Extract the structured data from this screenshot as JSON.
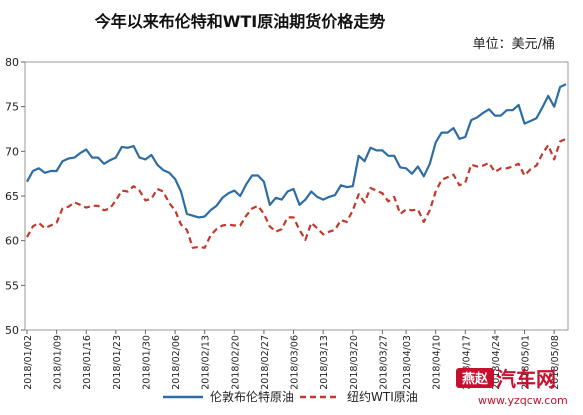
{
  "chart_data": {
    "type": "line",
    "title": "今年以来布伦特和WTI原油期货价格走势",
    "unit_label": "单位：美元/桶",
    "ylim": [
      50,
      80
    ],
    "yticks": [
      50,
      55,
      60,
      65,
      70,
      75,
      80
    ],
    "grid": false,
    "legend_position": "bottom",
    "x": [
      "2018/01/02",
      "2018/01/03",
      "2018/01/04",
      "2018/01/05",
      "2018/01/08",
      "2018/01/09",
      "2018/01/10",
      "2018/01/11",
      "2018/01/12",
      "2018/01/15",
      "2018/01/16",
      "2018/01/17",
      "2018/01/18",
      "2018/01/19",
      "2018/01/22",
      "2018/01/23",
      "2018/01/24",
      "2018/01/25",
      "2018/01/26",
      "2018/01/29",
      "2018/01/30",
      "2018/01/31",
      "2018/02/01",
      "2018/02/02",
      "2018/02/05",
      "2018/02/06",
      "2018/02/07",
      "2018/02/08",
      "2018/02/09",
      "2018/02/12",
      "2018/02/13",
      "2018/02/14",
      "2018/02/15",
      "2018/02/16",
      "2018/02/19",
      "2018/02/20",
      "2018/02/21",
      "2018/02/22",
      "2018/02/23",
      "2018/02/26",
      "2018/02/27",
      "2018/02/28",
      "2018/03/01",
      "2018/03/02",
      "2018/03/05",
      "2018/03/06",
      "2018/03/07",
      "2018/03/08",
      "2018/03/09",
      "2018/03/12",
      "2018/03/13",
      "2018/03/14",
      "2018/03/15",
      "2018/03/16",
      "2018/03/19",
      "2018/03/20",
      "2018/03/21",
      "2018/03/22",
      "2018/03/23",
      "2018/03/26",
      "2018/03/27",
      "2018/03/28",
      "2018/03/29",
      "2018/04/02",
      "2018/04/03",
      "2018/04/04",
      "2018/04/05",
      "2018/04/06",
      "2018/04/09",
      "2018/04/10",
      "2018/04/11",
      "2018/04/12",
      "2018/04/13",
      "2018/04/16",
      "2018/04/17",
      "2018/04/18",
      "2018/04/19",
      "2018/04/20",
      "2018/04/23",
      "2018/04/24",
      "2018/04/25",
      "2018/04/26",
      "2018/04/27",
      "2018/04/30",
      "2018/05/01",
      "2018/05/02",
      "2018/05/03",
      "2018/05/04",
      "2018/05/07",
      "2018/05/08",
      "2018/05/09",
      "2018/05/10"
    ],
    "x_tick_labels": [
      "2018/01/02",
      "2018/01/09",
      "2018/01/16",
      "2018/01/23",
      "2018/01/30",
      "2018/02/06",
      "2018/02/13",
      "2018/02/20",
      "2018/02/27",
      "2018/03/06",
      "2018/03/13",
      "2018/03/20",
      "2018/03/27",
      "2018/04/03",
      "2018/04/10",
      "2018/04/17",
      "2018/04/24",
      "2018/05/01",
      "2018/05/08"
    ],
    "series": [
      {
        "name": "伦敦布伦特原油",
        "color": "#2e6da4",
        "style": "solid",
        "values": [
          66.6,
          67.8,
          68.1,
          67.6,
          67.8,
          67.8,
          68.9,
          69.2,
          69.3,
          69.8,
          70.2,
          69.3,
          69.3,
          68.6,
          69.0,
          69.3,
          70.5,
          70.4,
          70.6,
          69.3,
          69.1,
          69.6,
          68.5,
          67.9,
          67.6,
          66.9,
          65.5,
          63.0,
          62.8,
          62.6,
          62.7,
          63.4,
          63.9,
          64.8,
          65.3,
          65.6,
          65.0,
          66.3,
          67.3,
          67.3,
          66.6,
          64.0,
          64.8,
          64.6,
          65.5,
          65.8,
          64.0,
          64.6,
          65.5,
          64.9,
          64.6,
          64.9,
          65.1,
          66.2,
          66.0,
          66.1,
          69.5,
          68.9,
          70.4,
          70.1,
          70.1,
          69.5,
          69.5,
          68.2,
          68.1,
          67.5,
          68.3,
          67.2,
          68.6,
          71.0,
          72.1,
          72.1,
          72.6,
          71.4,
          71.6,
          73.5,
          73.8,
          74.3,
          74.7,
          74.0,
          74.0,
          74.6,
          74.6,
          75.2,
          73.1,
          73.4,
          73.7,
          74.9,
          76.2,
          75.0,
          77.2,
          77.5
        ]
      },
      {
        "name": "纽约WTI原油",
        "color": "#c0392b",
        "style": "dashed",
        "values": [
          60.4,
          61.6,
          62.0,
          61.4,
          61.7,
          62.0,
          63.6,
          63.8,
          64.3,
          64.0,
          63.7,
          63.9,
          63.9,
          63.4,
          63.6,
          64.5,
          65.6,
          65.5,
          66.1,
          65.6,
          64.5,
          64.7,
          65.8,
          65.5,
          64.2,
          63.4,
          61.8,
          61.2,
          59.2,
          59.3,
          59.2,
          60.6,
          61.3,
          61.7,
          61.8,
          61.7,
          61.7,
          62.8,
          63.6,
          63.9,
          63.0,
          61.6,
          61.0,
          61.3,
          62.6,
          62.6,
          61.2,
          60.1,
          62.0,
          61.4,
          60.7,
          61.0,
          61.2,
          62.3,
          62.1,
          63.4,
          65.2,
          64.3,
          65.9,
          65.6,
          65.3,
          64.4,
          64.9,
          63.0,
          63.5,
          63.4,
          63.5,
          62.1,
          63.4,
          65.5,
          66.8,
          67.1,
          67.4,
          66.2,
          66.5,
          68.5,
          68.3,
          68.4,
          68.7,
          67.7,
          68.1,
          68.1,
          68.3,
          68.6,
          67.3,
          68.0,
          68.4,
          69.7,
          70.7,
          69.1,
          71.1,
          71.4
        ]
      }
    ]
  },
  "watermark": {
    "text_cn": "燕赵",
    "text_cn2": "汽车网",
    "url": "www.yzqcw.com",
    "color": "#c8102e"
  }
}
